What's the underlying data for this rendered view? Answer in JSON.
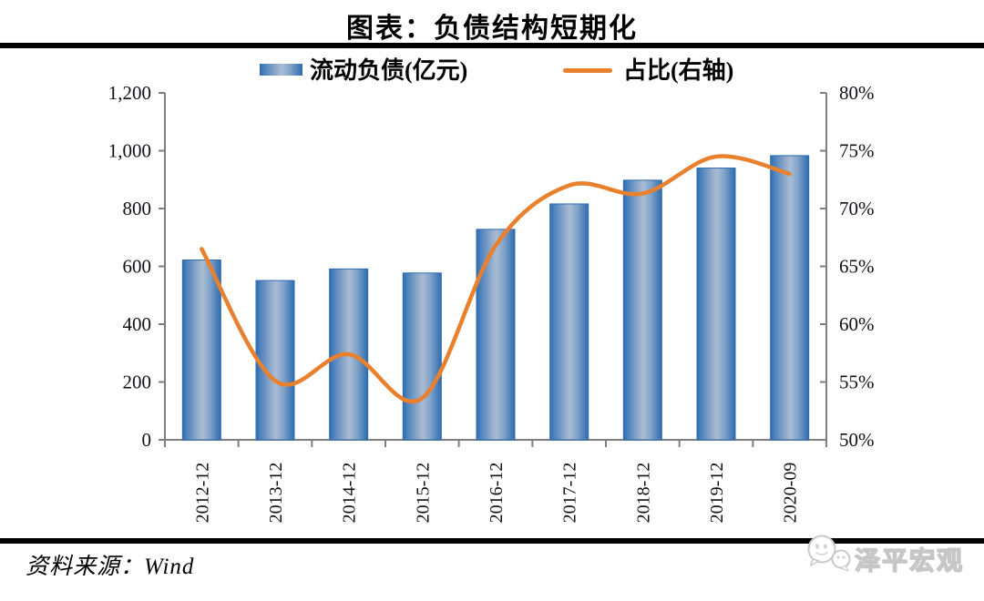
{
  "title": "图表：负债结构短期化",
  "legend": {
    "bar_label": "流动负债(亿元)",
    "line_label": "占比(右轴)"
  },
  "chart_data": {
    "type": "bar",
    "combo": "bar+line",
    "title": "图表：负债结构短期化",
    "xlabel": "",
    "ylabel_left": "流动负债(亿元)",
    "ylabel_right": "占比(右轴)",
    "categories": [
      "2012-12",
      "2013-12",
      "2014-12",
      "2015-12",
      "2016-12",
      "2017-12",
      "2018-12",
      "2019-12",
      "2020-09"
    ],
    "series": [
      {
        "name": "流动负债(亿元)",
        "type": "bar",
        "axis": "left",
        "values": [
          622,
          551,
          591,
          577,
          728,
          816,
          898,
          940,
          983
        ]
      },
      {
        "name": "占比(右轴)",
        "type": "line",
        "axis": "right",
        "values": [
          66.5,
          55.1,
          57.4,
          53.6,
          66.8,
          72.0,
          71.3,
          74.5,
          73.0
        ]
      }
    ],
    "left_axis": {
      "min": 0,
      "max": 1200,
      "step": 200,
      "labels": [
        "0",
        "200",
        "400",
        "600",
        "800",
        "1,000",
        "1,200"
      ]
    },
    "right_axis": {
      "min": 50,
      "max": 80,
      "step": 5,
      "labels": [
        "50%",
        "55%",
        "60%",
        "65%",
        "70%",
        "75%",
        "80%"
      ]
    },
    "grid": false,
    "legend_position": "top"
  },
  "footer": {
    "source": "资料来源：Wind",
    "logo_text": "泽平宏观"
  },
  "colors": {
    "bar_edge": "#2E6CB0",
    "bar_mid": "#A8BCD4",
    "line": "#E8802E",
    "axis": "#7F7F7F",
    "rule": "#000000"
  }
}
